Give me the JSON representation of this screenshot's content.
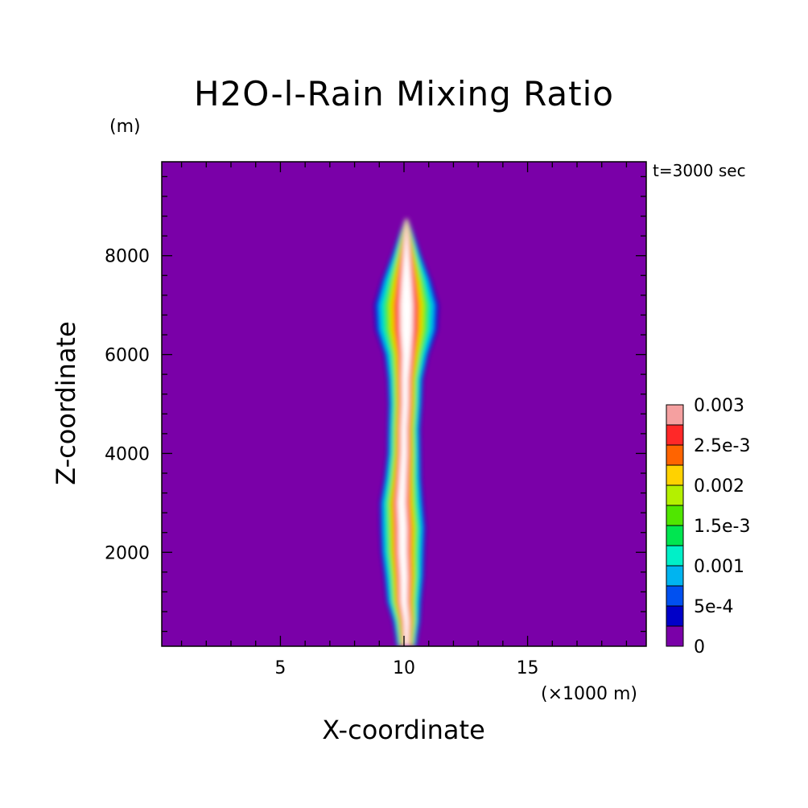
{
  "chart_data": {
    "type": "heatmap",
    "title": "H2O-l-Rain Mixing Ratio",
    "xlabel": "X-coordinate",
    "ylabel": "Z-coordinate",
    "x_unit": "(×1000 m)",
    "y_unit": "(m)",
    "annotation": "t=3000 sec",
    "xlim": [
      0.2,
      19.8
    ],
    "ylim": [
      100,
      9900
    ],
    "x_ticks": [
      5,
      10,
      15
    ],
    "y_ticks": [
      2000,
      4000,
      6000,
      8000
    ],
    "legend": {
      "placement": "right",
      "labels": [
        "0.003",
        "2.5e-3",
        "0.002",
        "1.5e-3",
        "0.001",
        "5e-4",
        "0"
      ],
      "levels": [
        0,
        0.00025,
        0.0005,
        0.00075,
        0.001,
        0.00125,
        0.0015,
        0.00175,
        0.002,
        0.00225,
        0.0025,
        0.00275,
        0.003
      ]
    },
    "colors": [
      "#7a00a8",
      "#0000c8",
      "#0050f0",
      "#00b4f0",
      "#00f0c8",
      "#00e650",
      "#50e600",
      "#b4f000",
      "#ffd200",
      "#ff6400",
      "#ff2828",
      "#f5a0a0",
      "#ffffff"
    ],
    "plume_profile": [
      {
        "z": 100,
        "center": 10.1,
        "halfwidth": 0.4
      },
      {
        "z": 300,
        "center": 10.1,
        "halfwidth": 0.45
      },
      {
        "z": 600,
        "center": 10.1,
        "halfwidth": 0.55
      },
      {
        "z": 1000,
        "center": 10.0,
        "halfwidth": 0.7
      },
      {
        "z": 1500,
        "center": 10.0,
        "halfwidth": 0.8
      },
      {
        "z": 2000,
        "center": 9.95,
        "halfwidth": 0.88
      },
      {
        "z": 2500,
        "center": 9.95,
        "halfwidth": 0.92
      },
      {
        "z": 3000,
        "center": 9.9,
        "halfwidth": 0.88
      },
      {
        "z": 3500,
        "center": 9.95,
        "halfwidth": 0.75
      },
      {
        "z": 4000,
        "center": 10.0,
        "halfwidth": 0.68
      },
      {
        "z": 4500,
        "center": 10.0,
        "halfwidth": 0.66
      },
      {
        "z": 5000,
        "center": 10.05,
        "halfwidth": 0.68
      },
      {
        "z": 5500,
        "center": 10.05,
        "halfwidth": 0.72
      },
      {
        "z": 6000,
        "center": 10.1,
        "halfwidth": 0.9
      },
      {
        "z": 6500,
        "center": 10.1,
        "halfwidth": 1.25
      },
      {
        "z": 7000,
        "center": 10.1,
        "halfwidth": 1.3
      },
      {
        "z": 7500,
        "center": 10.1,
        "halfwidth": 1.0
      },
      {
        "z": 8000,
        "center": 10.1,
        "halfwidth": 0.6
      },
      {
        "z": 8500,
        "center": 10.1,
        "halfwidth": 0.25
      },
      {
        "z": 8750,
        "center": 10.1,
        "halfwidth": 0.05
      }
    ]
  }
}
